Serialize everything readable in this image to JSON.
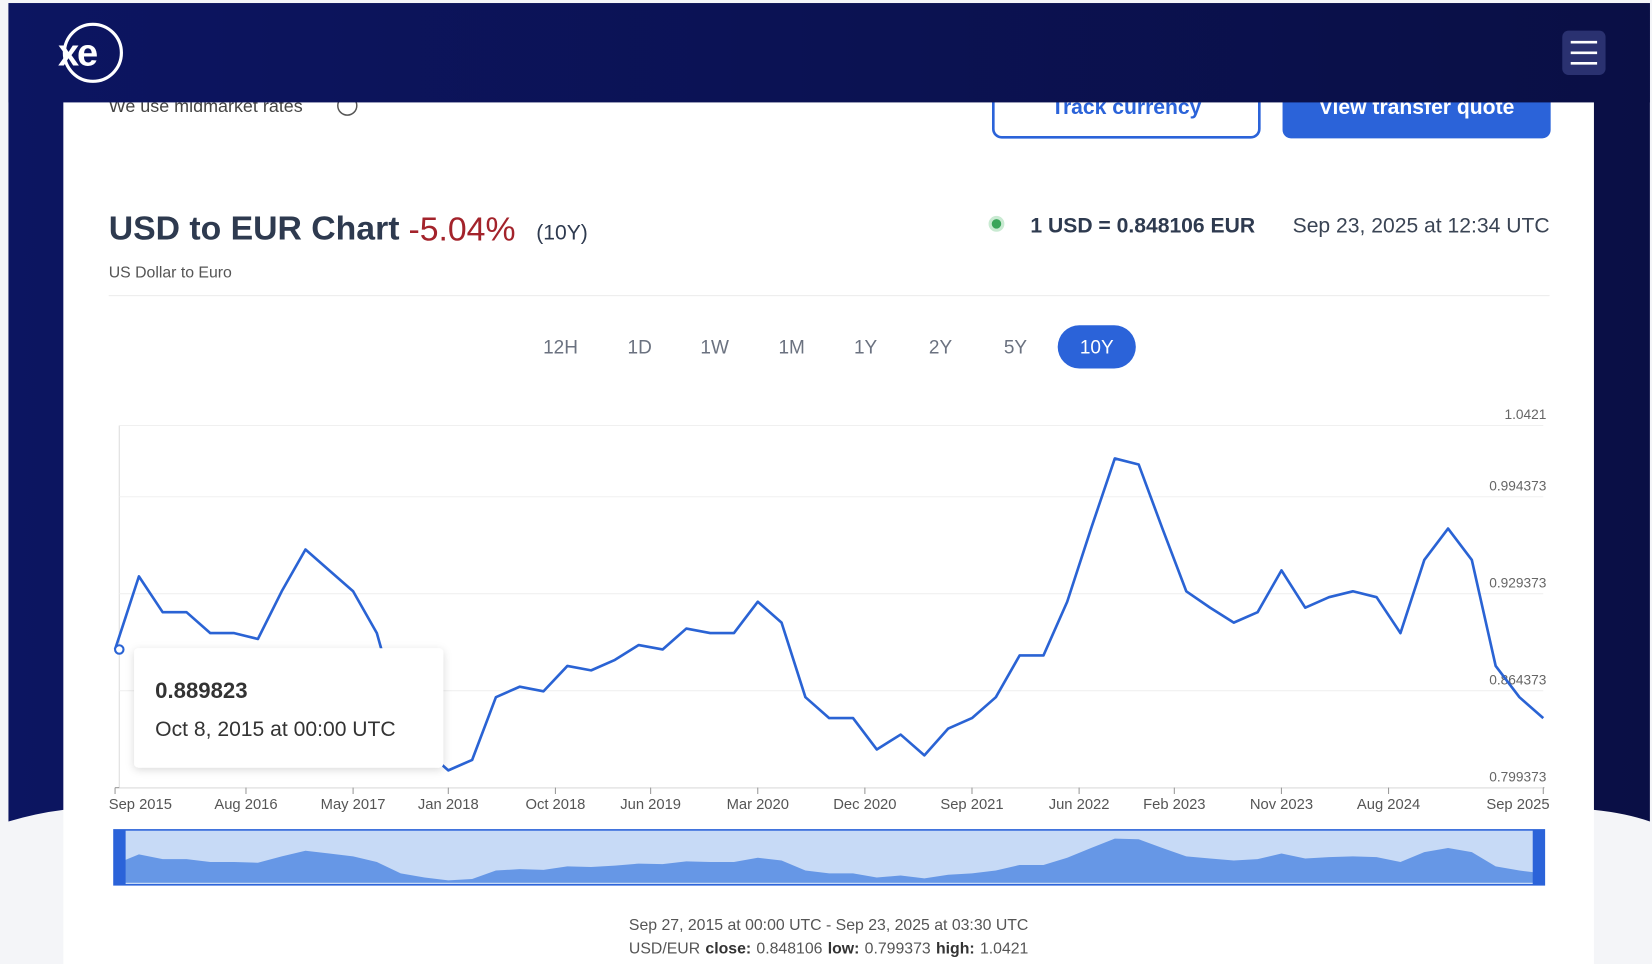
{
  "header": {
    "logo": "xe"
  },
  "notice": "We use midmarket rates",
  "buttons": {
    "track": "Track currency",
    "quote": "View transfer quote"
  },
  "chart_data": {
    "type": "line",
    "title": "USD to EUR Chart",
    "change": "-5.04%",
    "period": "(10Y)",
    "subtitle": "US Dollar to Euro",
    "live_rate": "1 USD = 0.848106 EUR",
    "live_time": "Sep 23, 2025 at 12:34 UTC",
    "ranges": [
      "12H",
      "1D",
      "1W",
      "1M",
      "1Y",
      "2Y",
      "5Y",
      "10Y"
    ],
    "active_range": 7,
    "x": [
      "2015-09",
      "2015-11",
      "2016-01",
      "2016-03",
      "2016-05",
      "2016-07",
      "2016-09",
      "2016-11",
      "2017-01",
      "2017-03",
      "2017-05",
      "2017-07",
      "2017-09",
      "2017-11",
      "2018-01",
      "2018-03",
      "2018-05",
      "2018-07",
      "2018-09",
      "2018-11",
      "2019-01",
      "2019-03",
      "2019-05",
      "2019-07",
      "2019-09",
      "2019-11",
      "2020-01",
      "2020-03",
      "2020-05",
      "2020-07",
      "2020-09",
      "2020-11",
      "2021-01",
      "2021-03",
      "2021-05",
      "2021-07",
      "2021-09",
      "2021-11",
      "2022-01",
      "2022-03",
      "2022-05",
      "2022-07",
      "2022-09",
      "2022-11",
      "2023-01",
      "2023-03",
      "2023-05",
      "2023-07",
      "2023-09",
      "2023-11",
      "2024-01",
      "2024-03",
      "2024-05",
      "2024-07",
      "2024-09",
      "2024-11",
      "2025-01",
      "2025-03",
      "2025-05",
      "2025-07",
      "2025-09"
    ],
    "series": [
      {
        "name": "USD/EUR",
        "color": "#2a63d4",
        "values": [
          0.892,
          0.941,
          0.917,
          0.917,
          0.903,
          0.903,
          0.899,
          0.931,
          0.959,
          0.945,
          0.931,
          0.903,
          0.846,
          0.825,
          0.811,
          0.818,
          0.86,
          0.867,
          0.864,
          0.881,
          0.878,
          0.885,
          0.895,
          0.892,
          0.906,
          0.903,
          0.903,
          0.924,
          0.91,
          0.86,
          0.846,
          0.846,
          0.825,
          0.835,
          0.821,
          0.839,
          0.846,
          0.86,
          0.888,
          0.888,
          0.924,
          0.973,
          1.02,
          1.016,
          0.973,
          0.931,
          0.92,
          0.91,
          0.917,
          0.945,
          0.92,
          0.927,
          0.931,
          0.927,
          0.903,
          0.952,
          0.973,
          0.952,
          0.881,
          0.86,
          0.846
        ]
      }
    ],
    "ylim": [
      0.799373,
      1.0421
    ],
    "yticks": [
      1.0421,
      0.994373,
      0.929373,
      0.864373,
      0.799373
    ],
    "xticks": [
      {
        "value": "2015-09",
        "label": "Sep 2015"
      },
      {
        "value": "2016-08",
        "label": "Aug 2016"
      },
      {
        "value": "2017-05",
        "label": "May 2017"
      },
      {
        "value": "2018-01",
        "label": "Jan 2018"
      },
      {
        "value": "2018-10",
        "label": "Oct 2018"
      },
      {
        "value": "2019-06",
        "label": "Jun 2019"
      },
      {
        "value": "2020-03",
        "label": "Mar 2020"
      },
      {
        "value": "2020-12",
        "label": "Dec 2020"
      },
      {
        "value": "2021-09",
        "label": "Sep 2021"
      },
      {
        "value": "2022-06",
        "label": "Jun 2022"
      },
      {
        "value": "2023-02",
        "label": "Feb 2023"
      },
      {
        "value": "2023-11",
        "label": "Nov 2023"
      },
      {
        "value": "2024-08",
        "label": "Aug 2024"
      },
      {
        "value": "2025-09",
        "label": "Sep 2025"
      }
    ],
    "grid": true,
    "tooltip": {
      "value": "0.889823",
      "label": "Oct 8, 2015 at 00:00 UTC"
    },
    "range_text": "Sep 27, 2015 at 00:00 UTC - Sep 23, 2025 at 03:30 UTC",
    "stats": [
      {
        "label": "close:",
        "value": "0.848106"
      },
      {
        "label": "low:",
        "value": "0.799373"
      },
      {
        "label": "high:",
        "value": "1.0421"
      }
    ]
  }
}
